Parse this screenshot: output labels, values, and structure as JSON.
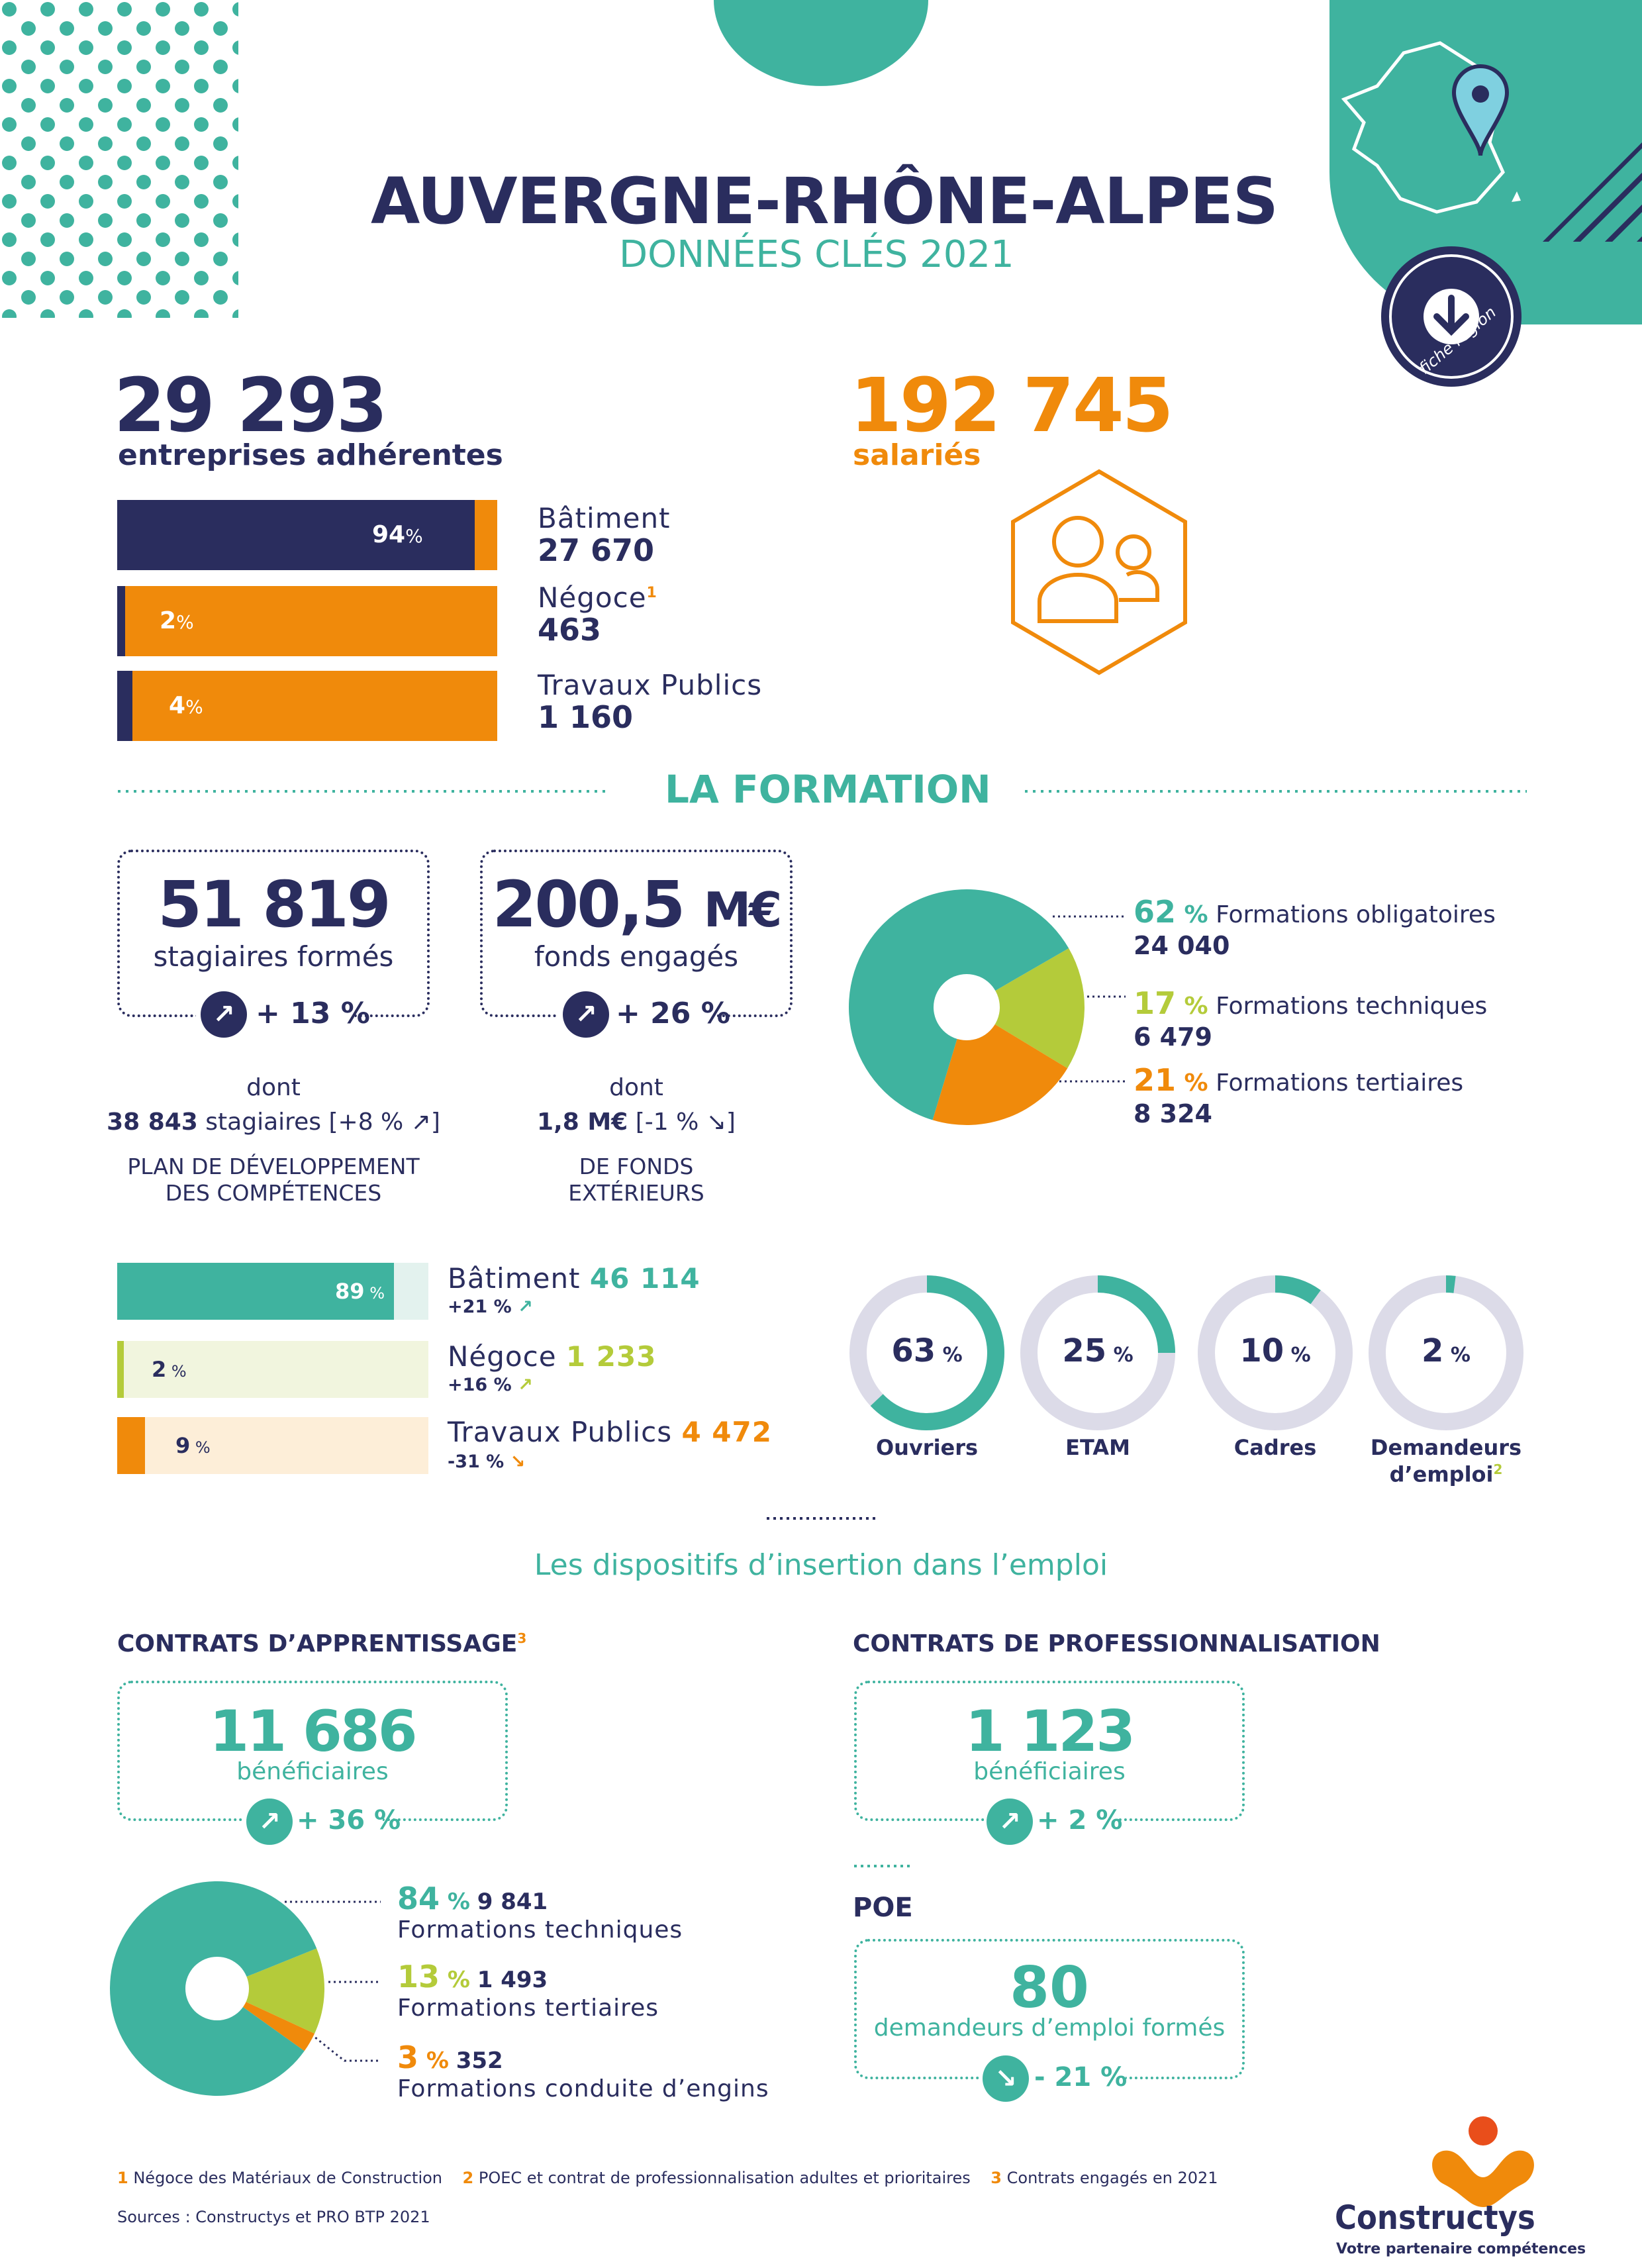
{
  "header": {
    "title": "AUVERGNE-RHÔNE-ALPES",
    "subtitle": "DONNÉES CLÉS 2021",
    "badge_text": "fiche région"
  },
  "stats": {
    "entreprises_value": "29 293",
    "entreprises_label": "entreprises adhérentes",
    "salaries_value": "192 745",
    "salaries_label": "salariés"
  },
  "sectors": [
    {
      "pct": "94",
      "pct_unit": "%",
      "name": "Bâtiment",
      "sup": "",
      "value": "27 670",
      "share": 0.94
    },
    {
      "pct": "2",
      "pct_unit": "%",
      "name": "Négoce",
      "sup": "1",
      "value": "463",
      "share": 0.02
    },
    {
      "pct": "4",
      "pct_unit": "%",
      "name": "Travaux Publics",
      "sup": "",
      "value": "1 160",
      "share": 0.04
    }
  ],
  "formation": {
    "section_title": "LA FORMATION",
    "stagiaires_value": "51 819",
    "stagiaires_label": "stagiaires formés",
    "stagiaires_growth": "+ 13 %",
    "fonds_value": "200,5",
    "fonds_unit": "M€",
    "fonds_label": "fonds engagés",
    "fonds_growth": "+ 26 %",
    "dont": "dont",
    "plan_value": "38 843",
    "plan_text": "stagiaires [+8 %",
    "plan_close": "]",
    "plan_caption_1": "PLAN DE DÉVELOPPEMENT",
    "plan_caption_2": "DES COMPÉTENCES",
    "ext_value": "1,8 M€",
    "ext_text": "[-1 %",
    "ext_close": "]",
    "ext_caption_1": "DE FONDS",
    "ext_caption_2": "EXTÉRIEURS"
  },
  "chart_data": [
    {
      "type": "pie",
      "title": "",
      "categories": [
        "Formations obligatoires",
        "Formations techniques",
        "Formations tertiaires"
      ],
      "values": [
        62,
        17,
        21
      ],
      "counts": [
        "24 040",
        "6 479",
        "8 324"
      ],
      "colors": [
        "#3fb39f",
        "#b4cb3a",
        "#f08a0b"
      ]
    },
    {
      "type": "bar",
      "title": "",
      "categories": [
        "Bâtiment",
        "Négoce",
        "Travaux Publics"
      ],
      "values": [
        89,
        2,
        9
      ],
      "counts": [
        "46 114",
        "1 233",
        "4 472"
      ],
      "growth": [
        "+21 %",
        "+16 %",
        "-31 %"
      ],
      "colors": [
        "#3fb39f",
        "#b4cb3a",
        "#f08a0b"
      ]
    },
    {
      "type": "pie",
      "title": "",
      "categories": [
        "Ouvriers",
        "ETAM",
        "Cadres",
        "Demandeurs d’emploi"
      ],
      "values": [
        63,
        25,
        10,
        2
      ]
    },
    {
      "type": "pie",
      "title": "",
      "categories": [
        "Formations techniques",
        "Formations tertiaires",
        "Formations conduite d’engins"
      ],
      "values": [
        84,
        13,
        3
      ],
      "counts": [
        "9 841",
        "1 493",
        "352"
      ],
      "colors": [
        "#3fb39f",
        "#b4cb3a",
        "#f08a0b"
      ]
    }
  ],
  "pie1_labels": [
    {
      "pct": "62",
      "name": "Formations obligatoires",
      "count": "24 040"
    },
    {
      "pct": "17",
      "name": "Formations techniques",
      "count": "6 479"
    },
    {
      "pct": "21",
      "name": "Formations tertiaires",
      "count": "8 324"
    }
  ],
  "secbars": [
    {
      "pct": "89",
      "name": "Bâtiment",
      "count": "46 114",
      "growth": "+21 %",
      "arrow": "↗"
    },
    {
      "pct": "2",
      "name": "Négoce",
      "count": "1 233",
      "growth": "+16 %",
      "arrow": "↗"
    },
    {
      "pct": "9",
      "name": "Travaux Publics",
      "count": "4 472",
      "growth": "-31 %",
      "arrow": "↘"
    }
  ],
  "donuts": [
    {
      "pct": "63",
      "label": "Ouvriers",
      "label2": "",
      "sup": ""
    },
    {
      "pct": "25",
      "label": "ETAM",
      "label2": "",
      "sup": ""
    },
    {
      "pct": "10",
      "label": "Cadres",
      "label2": "",
      "sup": ""
    },
    {
      "pct": "2",
      "label": "Demandeurs",
      "label2": "d’emploi",
      "sup": "2"
    }
  ],
  "insertion": {
    "title": "Les dispositifs d’insertion dans l’emploi",
    "appr_title": "CONTRATS D’APPRENTISSAGE",
    "appr_sup": "3",
    "appr_value": "11 686",
    "appr_label": "bénéficiaires",
    "appr_growth": "+ 36 %",
    "pro_title": "CONTRATS DE PROFESSIONNALISATION",
    "pro_value": "1 123",
    "pro_label": "bénéficiaires",
    "pro_growth": "+ 2 %",
    "poe_title": "POE",
    "poe_value": "80",
    "poe_label": "demandeurs d’emploi formés",
    "poe_growth": "- 21 %"
  },
  "pie2_labels": [
    {
      "pct": "84",
      "count": "9 841",
      "name": "Formations techniques"
    },
    {
      "pct": "13",
      "count": "1 493",
      "name": "Formations tertiaires"
    },
    {
      "pct": "3",
      "count": "352",
      "name": "Formations conduite d’engins"
    }
  ],
  "footer": {
    "note1_num": "1",
    "note1": "Négoce des Matériaux de Construction",
    "note2_num": "2",
    "note2": "POEC et contrat de professionnalisation adultes et prioritaires",
    "note3_num": "3",
    "note3": "Contrats engagés en 2021",
    "sources": "Sources : Constructys et PRO BTP 2021",
    "brand": "Constructys",
    "tagline": "Votre partenaire compétences"
  },
  "colors": {
    "navy": "#2a2d5e",
    "teal": "#3fb39f",
    "orange": "#f08a0b",
    "lime": "#b4cb3a",
    "grey": "#dcdbe8"
  }
}
